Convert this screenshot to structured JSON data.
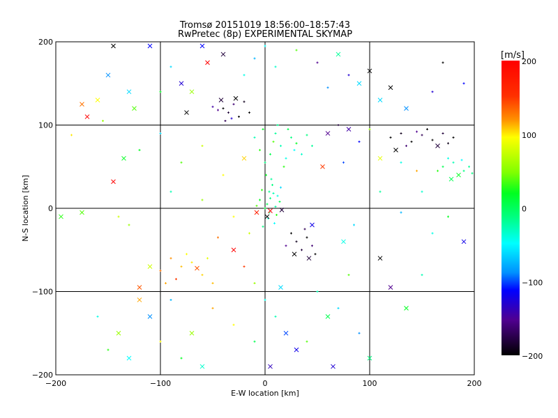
{
  "chart_data": {
    "type": "scatter",
    "title": "Tromsø 20151019 18:56:00–18:57:43",
    "subtitle": "RwPretec (8p) EXPERIMENTAL SKYMAP",
    "xlabel": "E-W location [km]",
    "ylabel": "N-S location [km]",
    "xlim": [
      -200,
      200
    ],
    "ylim": [
      -200,
      200
    ],
    "xticks": [
      -200,
      -100,
      0,
      100,
      200
    ],
    "yticks": [
      -200,
      -100,
      0,
      100,
      200
    ],
    "xtick_labels": [
      "−200",
      "−100",
      "0",
      "100",
      "200"
    ],
    "ytick_labels": [
      "−200",
      "−100",
      "0",
      "100",
      "200"
    ],
    "grid": true,
    "colorbar": {
      "label": "[m/s]",
      "range": [
        -200,
        200
      ],
      "ticks": [
        200,
        100,
        0,
        -100,
        -200
      ],
      "tick_labels": [
        "200",
        "100",
        "0",
        "−100",
        "−200"
      ],
      "placement": "right"
    },
    "series_note_fields": [
      "x_km",
      "y_km",
      "velocity_m_s",
      "marker"
    ],
    "points": [
      [
        2,
        5,
        10,
        "+"
      ],
      [
        5,
        12,
        0,
        "+"
      ],
      [
        8,
        18,
        -20,
        "+"
      ],
      [
        -3,
        22,
        30,
        "+"
      ],
      [
        10,
        2,
        -10,
        "+"
      ],
      [
        4,
        -5,
        5,
        "+"
      ],
      [
        12,
        15,
        -40,
        "+"
      ],
      [
        -5,
        10,
        20,
        "+"
      ],
      [
        7,
        28,
        0,
        "+"
      ],
      [
        0,
        0,
        15,
        "+"
      ],
      [
        3,
        -12,
        -30,
        "+"
      ],
      [
        14,
        8,
        10,
        "+"
      ],
      [
        -8,
        3,
        40,
        "+"
      ],
      [
        6,
        35,
        -10,
        "+"
      ],
      [
        9,
        -18,
        -50,
        "+"
      ],
      [
        1,
        40,
        20,
        "+"
      ],
      [
        -2,
        -22,
        0,
        "+"
      ],
      [
        15,
        25,
        -60,
        "+"
      ],
      [
        11,
        -8,
        30,
        "+"
      ],
      [
        4,
        20,
        -5,
        "+"
      ],
      [
        5,
        -3,
        200,
        "x"
      ],
      [
        -8,
        -5,
        190,
        "x"
      ],
      [
        16,
        -2,
        -180,
        "x"
      ],
      [
        2,
        -10,
        -200,
        "x"
      ],
      [
        5,
        65,
        10,
        "+"
      ],
      [
        15,
        75,
        -20,
        "+"
      ],
      [
        25,
        85,
        0,
        "+"
      ],
      [
        -5,
        70,
        30,
        "+"
      ],
      [
        20,
        60,
        -40,
        "+"
      ],
      [
        30,
        78,
        20,
        "+"
      ],
      [
        10,
        90,
        -10,
        "+"
      ],
      [
        0,
        55,
        0,
        "+"
      ],
      [
        35,
        65,
        -30,
        "+"
      ],
      [
        8,
        80,
        40,
        "+"
      ],
      [
        22,
        95,
        10,
        "+"
      ],
      [
        -10,
        85,
        -20,
        "+"
      ],
      [
        40,
        88,
        0,
        "+"
      ],
      [
        18,
        50,
        30,
        "+"
      ],
      [
        28,
        70,
        -50,
        "+"
      ],
      [
        12,
        100,
        -5,
        "+"
      ],
      [
        -2,
        95,
        20,
        "+"
      ],
      [
        45,
        75,
        -10,
        "+"
      ],
      [
        -40,
        120,
        -200,
        "+"
      ],
      [
        -35,
        115,
        -180,
        "+"
      ],
      [
        -30,
        125,
        -160,
        "+"
      ],
      [
        -25,
        110,
        -200,
        "+"
      ],
      [
        -45,
        118,
        -150,
        "+"
      ],
      [
        -20,
        128,
        -190,
        "+"
      ],
      [
        -38,
        105,
        -170,
        "+"
      ],
      [
        -28,
        132,
        -200,
        "x"
      ],
      [
        -50,
        122,
        -140,
        "+"
      ],
      [
        -15,
        115,
        -200,
        "+"
      ],
      [
        -42,
        130,
        -180,
        "x"
      ],
      [
        -32,
        108,
        -120,
        "+"
      ],
      [
        120,
        85,
        -200,
        "+"
      ],
      [
        130,
        90,
        -190,
        "+"
      ],
      [
        140,
        80,
        -200,
        "+"
      ],
      [
        150,
        88,
        -170,
        "+"
      ],
      [
        160,
        82,
        -200,
        "+"
      ],
      [
        170,
        90,
        -180,
        "+"
      ],
      [
        180,
        85,
        -200,
        "+"
      ],
      [
        135,
        75,
        -160,
        "+"
      ],
      [
        155,
        95,
        -200,
        "+"
      ],
      [
        175,
        78,
        -190,
        "+"
      ],
      [
        145,
        92,
        -150,
        "+"
      ],
      [
        125,
        70,
        -200,
        "x"
      ],
      [
        165,
        75,
        -180,
        "x"
      ],
      [
        170,
        50,
        10,
        "+"
      ],
      [
        180,
        55,
        -20,
        "+"
      ],
      [
        190,
        45,
        0,
        "+"
      ],
      [
        175,
        60,
        -40,
        "+"
      ],
      [
        185,
        40,
        20,
        "x"
      ],
      [
        195,
        50,
        -10,
        "+"
      ],
      [
        165,
        45,
        30,
        "+"
      ],
      [
        188,
        58,
        -50,
        "+"
      ],
      [
        178,
        35,
        10,
        "x"
      ],
      [
        198,
        42,
        0,
        "+"
      ],
      [
        25,
        -30,
        -200,
        "+"
      ],
      [
        30,
        -40,
        -190,
        "+"
      ],
      [
        35,
        -50,
        -180,
        "+"
      ],
      [
        40,
        -35,
        -200,
        "+"
      ],
      [
        45,
        -45,
        -160,
        "+"
      ],
      [
        28,
        -55,
        -200,
        "x"
      ],
      [
        38,
        -25,
        -170,
        "+"
      ],
      [
        48,
        -55,
        -200,
        "+"
      ],
      [
        20,
        -45,
        -150,
        "+"
      ],
      [
        42,
        -60,
        -180,
        "x"
      ],
      [
        -90,
        -60,
        150,
        "+"
      ],
      [
        -80,
        -70,
        130,
        "+"
      ],
      [
        -70,
        -65,
        110,
        "+"
      ],
      [
        -100,
        -75,
        160,
        "+"
      ],
      [
        -60,
        -80,
        120,
        "+"
      ],
      [
        -85,
        -85,
        180,
        "+"
      ],
      [
        -75,
        -55,
        100,
        "+"
      ],
      [
        -95,
        -90,
        140,
        "+"
      ],
      [
        -65,
        -72,
        170,
        "x"
      ],
      [
        -55,
        -60,
        90,
        "+"
      ],
      [
        -110,
        -70,
        80,
        "x"
      ],
      [
        -50,
        -90,
        130,
        "+"
      ],
      [
        -120,
        -95,
        170,
        "x"
      ],
      [
        -170,
        110,
        200,
        "x"
      ],
      [
        -160,
        130,
        100,
        "x"
      ],
      [
        -150,
        160,
        -80,
        "x"
      ],
      [
        -130,
        140,
        -60,
        "x"
      ],
      [
        -110,
        195,
        -100,
        "x"
      ],
      [
        -145,
        195,
        -200,
        "x"
      ],
      [
        -125,
        120,
        40,
        "x"
      ],
      [
        -155,
        105,
        60,
        "+"
      ],
      [
        -175,
        125,
        160,
        "x"
      ],
      [
        -185,
        88,
        110,
        "+"
      ],
      [
        -145,
        32,
        200,
        "x"
      ],
      [
        -135,
        60,
        20,
        "x"
      ],
      [
        -195,
        -10,
        30,
        "x"
      ],
      [
        -175,
        -5,
        40,
        "x"
      ],
      [
        -140,
        -10,
        80,
        "+"
      ],
      [
        -130,
        -20,
        60,
        "+"
      ],
      [
        -60,
        195,
        -100,
        "x"
      ],
      [
        -40,
        185,
        -180,
        "x"
      ],
      [
        -80,
        150,
        -120,
        "x"
      ],
      [
        -90,
        170,
        -60,
        "+"
      ],
      [
        -70,
        140,
        60,
        "x"
      ],
      [
        -55,
        175,
        200,
        "x"
      ],
      [
        -75,
        115,
        -200,
        "x"
      ],
      [
        -100,
        140,
        20,
        "+"
      ],
      [
        -20,
        160,
        -40,
        "+"
      ],
      [
        -10,
        180,
        -70,
        "+"
      ],
      [
        0,
        195,
        -50,
        "+"
      ],
      [
        10,
        170,
        -30,
        "+"
      ],
      [
        30,
        190,
        40,
        "+"
      ],
      [
        50,
        175,
        -150,
        "+"
      ],
      [
        60,
        145,
        -80,
        "+"
      ],
      [
        70,
        185,
        -10,
        "x"
      ],
      [
        80,
        160,
        -120,
        "+"
      ],
      [
        90,
        150,
        -60,
        "x"
      ],
      [
        100,
        165,
        -200,
        "x"
      ],
      [
        110,
        130,
        -60,
        "x"
      ],
      [
        120,
        145,
        -200,
        "x"
      ],
      [
        135,
        120,
        -80,
        "x"
      ],
      [
        160,
        140,
        -120,
        "+"
      ],
      [
        170,
        175,
        -200,
        "+"
      ],
      [
        190,
        150,
        -100,
        "+"
      ],
      [
        60,
        90,
        -150,
        "x"
      ],
      [
        70,
        100,
        -180,
        "+"
      ],
      [
        80,
        95,
        -140,
        "x"
      ],
      [
        90,
        80,
        -100,
        "+"
      ],
      [
        100,
        95,
        60,
        "+"
      ],
      [
        55,
        50,
        180,
        "x"
      ],
      [
        75,
        55,
        -90,
        "+"
      ],
      [
        110,
        60,
        90,
        "x"
      ],
      [
        130,
        55,
        -40,
        "+"
      ],
      [
        145,
        45,
        140,
        "+"
      ],
      [
        -60,
        75,
        80,
        "+"
      ],
      [
        -80,
        55,
        40,
        "+"
      ],
      [
        -100,
        90,
        -60,
        "+"
      ],
      [
        -120,
        70,
        20,
        "+"
      ],
      [
        -40,
        40,
        100,
        "+"
      ],
      [
        -20,
        60,
        120,
        "x"
      ],
      [
        -90,
        20,
        -20,
        "+"
      ],
      [
        -60,
        10,
        60,
        "+"
      ],
      [
        -30,
        -10,
        100,
        "+"
      ],
      [
        -15,
        -30,
        80,
        "+"
      ],
      [
        -30,
        -50,
        200,
        "x"
      ],
      [
        -45,
        -35,
        160,
        "+"
      ],
      [
        -20,
        -70,
        180,
        "+"
      ],
      [
        -10,
        -90,
        60,
        "+"
      ],
      [
        0,
        -110,
        -40,
        "+"
      ],
      [
        15,
        -95,
        -60,
        "x"
      ],
      [
        10,
        -130,
        -20,
        "+"
      ],
      [
        20,
        -150,
        -90,
        "x"
      ],
      [
        30,
        -170,
        -110,
        "x"
      ],
      [
        40,
        -160,
        40,
        "+"
      ],
      [
        5,
        -190,
        -130,
        "x"
      ],
      [
        -10,
        -160,
        10,
        "+"
      ],
      [
        -30,
        -140,
        100,
        "+"
      ],
      [
        -50,
        -120,
        140,
        "+"
      ],
      [
        -70,
        -150,
        60,
        "x"
      ],
      [
        -80,
        -180,
        20,
        "+"
      ],
      [
        -60,
        -190,
        -30,
        "x"
      ],
      [
        -110,
        -130,
        -80,
        "x"
      ],
      [
        -130,
        -180,
        -50,
        "x"
      ],
      [
        -150,
        -170,
        30,
        "+"
      ],
      [
        -160,
        -130,
        -40,
        "+"
      ],
      [
        -140,
        -150,
        60,
        "x"
      ],
      [
        -120,
        -110,
        140,
        "x"
      ],
      [
        -100,
        -160,
        100,
        "+"
      ],
      [
        -90,
        -110,
        -70,
        "+"
      ],
      [
        50,
        -100,
        -20,
        "+"
      ],
      [
        60,
        -130,
        10,
        "x"
      ],
      [
        70,
        -120,
        -60,
        "+"
      ],
      [
        80,
        -80,
        40,
        "+"
      ],
      [
        90,
        -150,
        -80,
        "+"
      ],
      [
        100,
        -180,
        0,
        "x"
      ],
      [
        110,
        -60,
        -200,
        "x"
      ],
      [
        120,
        -95,
        -150,
        "x"
      ],
      [
        135,
        -120,
        20,
        "x"
      ],
      [
        150,
        -80,
        -20,
        "+"
      ],
      [
        160,
        -30,
        -40,
        "+"
      ],
      [
        175,
        -10,
        20,
        "+"
      ],
      [
        190,
        -40,
        -110,
        "x"
      ],
      [
        65,
        -190,
        -120,
        "x"
      ],
      [
        45,
        -20,
        -110,
        "x"
      ],
      [
        85,
        -20,
        -60,
        "+"
      ],
      [
        75,
        -40,
        -40,
        "x"
      ],
      [
        130,
        -5,
        -70,
        "+"
      ],
      [
        110,
        20,
        -10,
        "+"
      ],
      [
        150,
        20,
        -30,
        "+"
      ]
    ]
  }
}
